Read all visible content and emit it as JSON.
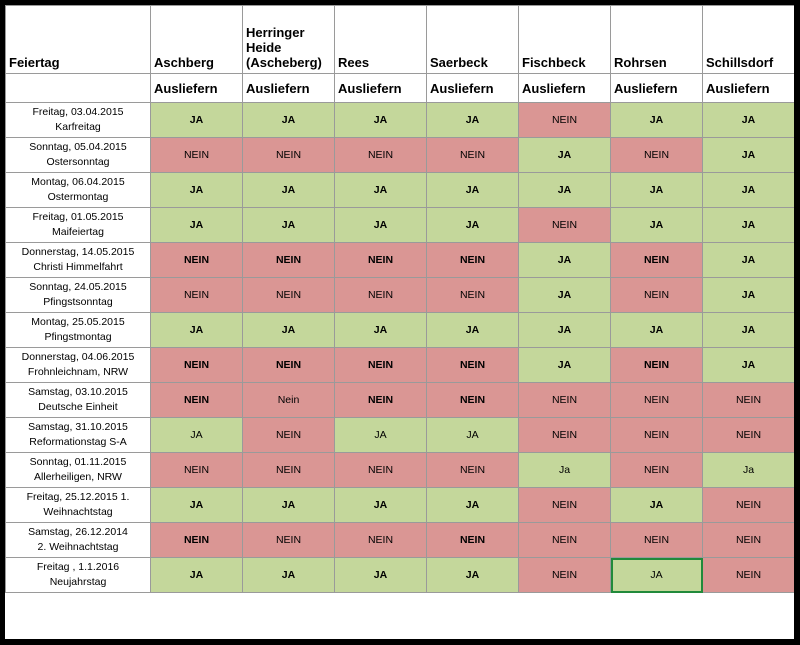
{
  "header": {
    "feiertag": "Feiertag",
    "locations": [
      "Aschberg",
      "Herringer Heide (Ascheberg)",
      "Rees",
      "Saerbeck",
      "Fischbeck",
      "Rohrsen",
      "Schillsdorf"
    ],
    "subheader": "Ausliefern"
  },
  "colors": {
    "ja": "#c4d79b",
    "nein": "#da9694"
  },
  "rows": [
    {
      "l1": "Freitag, 03.04.2015",
      "l2": "Karfreitag",
      "cells": [
        {
          "t": "JA",
          "b": true
        },
        {
          "t": "JA",
          "b": true
        },
        {
          "t": "JA",
          "b": true
        },
        {
          "t": "JA",
          "b": true
        },
        {
          "t": "NEIN",
          "b": false
        },
        {
          "t": "JA",
          "b": true
        },
        {
          "t": "JA",
          "b": true
        }
      ]
    },
    {
      "l1": "Sonntag, 05.04.2015",
      "l2": "Ostersonntag",
      "cells": [
        {
          "t": "NEIN",
          "b": false
        },
        {
          "t": "NEIN",
          "b": false
        },
        {
          "t": "NEIN",
          "b": false
        },
        {
          "t": "NEIN",
          "b": false
        },
        {
          "t": "JA",
          "b": true
        },
        {
          "t": "NEIN",
          "b": false
        },
        {
          "t": "JA",
          "b": true
        }
      ]
    },
    {
      "l1": "Montag, 06.04.2015",
      "l2": "Ostermontag",
      "cells": [
        {
          "t": "JA",
          "b": true
        },
        {
          "t": "JA",
          "b": true
        },
        {
          "t": "JA",
          "b": true
        },
        {
          "t": "JA",
          "b": true
        },
        {
          "t": "JA",
          "b": true
        },
        {
          "t": "JA",
          "b": true
        },
        {
          "t": "JA",
          "b": true
        }
      ]
    },
    {
      "l1": "Freitag, 01.05.2015",
      "l2": "Maifeiertag",
      "cells": [
        {
          "t": "JA",
          "b": true
        },
        {
          "t": "JA",
          "b": true
        },
        {
          "t": "JA",
          "b": true
        },
        {
          "t": "JA",
          "b": true
        },
        {
          "t": "NEIN",
          "b": false
        },
        {
          "t": "JA",
          "b": true
        },
        {
          "t": "JA",
          "b": true
        }
      ]
    },
    {
      "l1": "Donnerstag, 14.05.2015",
      "l2": "Christi Himmelfahrt",
      "cells": [
        {
          "t": "NEIN",
          "b": true
        },
        {
          "t": "NEIN",
          "b": true
        },
        {
          "t": "NEIN",
          "b": true
        },
        {
          "t": "NEIN",
          "b": true
        },
        {
          "t": "JA",
          "b": true
        },
        {
          "t": "NEIN",
          "b": true
        },
        {
          "t": "JA",
          "b": true
        }
      ]
    },
    {
      "l1": "Sonntag, 24.05.2015",
      "l2": "Pfingstsonntag",
      "cells": [
        {
          "t": "NEIN",
          "b": false
        },
        {
          "t": "NEIN",
          "b": false
        },
        {
          "t": "NEIN",
          "b": false
        },
        {
          "t": "NEIN",
          "b": false
        },
        {
          "t": "JA",
          "b": true
        },
        {
          "t": "NEIN",
          "b": false
        },
        {
          "t": "JA",
          "b": true
        }
      ]
    },
    {
      "l1": "Montag, 25.05.2015",
      "l2": "Pfingstmontag",
      "cells": [
        {
          "t": "JA",
          "b": true
        },
        {
          "t": "JA",
          "b": true
        },
        {
          "t": "JA",
          "b": true
        },
        {
          "t": "JA",
          "b": true
        },
        {
          "t": "JA",
          "b": true
        },
        {
          "t": "JA",
          "b": true
        },
        {
          "t": "JA",
          "b": true
        }
      ]
    },
    {
      "l1": "Donnerstag, 04.06.2015",
      "l2": "Frohnleichnam, NRW",
      "cells": [
        {
          "t": "NEIN",
          "b": true
        },
        {
          "t": "NEIN",
          "b": true
        },
        {
          "t": "NEIN",
          "b": true
        },
        {
          "t": "NEIN",
          "b": true
        },
        {
          "t": "JA",
          "b": true
        },
        {
          "t": "NEIN",
          "b": true
        },
        {
          "t": "JA",
          "b": true
        }
      ]
    },
    {
      "l1": "Samstag, 03.10.2015",
      "l2": "Deutsche Einheit",
      "cells": [
        {
          "t": "NEIN",
          "b": true
        },
        {
          "t": "Nein",
          "b": false
        },
        {
          "t": "NEIN",
          "b": true
        },
        {
          "t": "NEIN",
          "b": true
        },
        {
          "t": "NEIN",
          "b": false
        },
        {
          "t": "NEIN",
          "b": false
        },
        {
          "t": "NEIN",
          "b": false
        }
      ]
    },
    {
      "l1": "Samstag, 31.10.2015",
      "l2": "Reformationstag S-A",
      "cells": [
        {
          "t": "JA",
          "b": false
        },
        {
          "t": "NEIN",
          "b": false
        },
        {
          "t": "JA",
          "b": false
        },
        {
          "t": "JA",
          "b": false
        },
        {
          "t": "NEIN",
          "b": false
        },
        {
          "t": "NEIN",
          "b": false
        },
        {
          "t": "NEIN",
          "b": false
        }
      ]
    },
    {
      "l1": "Sonntag, 01.11.2015",
      "l2": "Allerheiligen, NRW",
      "cells": [
        {
          "t": "NEIN",
          "b": false
        },
        {
          "t": "NEIN",
          "b": false
        },
        {
          "t": "NEIN",
          "b": false
        },
        {
          "t": "NEIN",
          "b": false
        },
        {
          "t": "Ja",
          "b": false
        },
        {
          "t": "NEIN",
          "b": false
        },
        {
          "t": "Ja",
          "b": false
        }
      ]
    },
    {
      "l1": "Freitag, 25.12.2015 1.",
      "l2": "Weihnachtstag",
      "cells": [
        {
          "t": "JA",
          "b": true
        },
        {
          "t": "JA",
          "b": true
        },
        {
          "t": "JA",
          "b": true
        },
        {
          "t": "JA",
          "b": true
        },
        {
          "t": "NEIN",
          "b": false
        },
        {
          "t": "JA",
          "b": true
        },
        {
          "t": "NEIN",
          "b": false
        }
      ]
    },
    {
      "l1": "Samstag, 26.12.2014",
      "l2": "2. Weihnachtstag",
      "cells": [
        {
          "t": "NEIN",
          "b": true
        },
        {
          "t": "NEIN",
          "b": false
        },
        {
          "t": "NEIN",
          "b": false
        },
        {
          "t": "NEIN",
          "b": true
        },
        {
          "t": "NEIN",
          "b": false
        },
        {
          "t": "NEIN",
          "b": false
        },
        {
          "t": "NEIN",
          "b": false
        }
      ]
    },
    {
      "l1": "Freitag , 1.1.2016",
      "l2": "Neujahrstag",
      "cells": [
        {
          "t": "JA",
          "b": true
        },
        {
          "t": "JA",
          "b": true
        },
        {
          "t": "JA",
          "b": true
        },
        {
          "t": "JA",
          "b": true
        },
        {
          "t": "NEIN",
          "b": false
        },
        {
          "t": "JA",
          "b": false,
          "sel": true
        },
        {
          "t": "NEIN",
          "b": false
        }
      ]
    }
  ]
}
